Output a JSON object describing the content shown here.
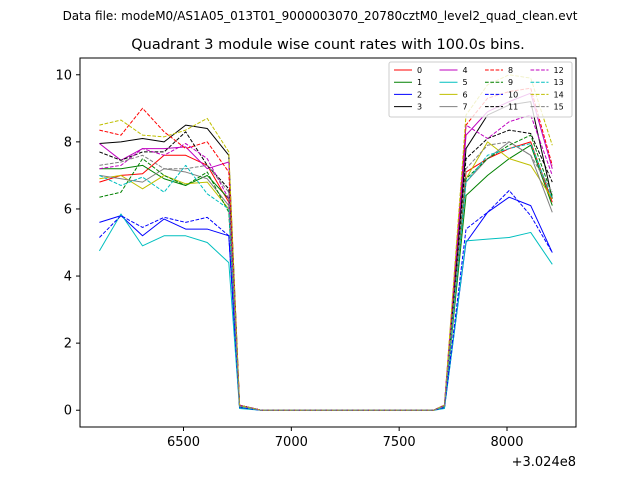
{
  "chart_data": {
    "type": "line",
    "suptitle": "Data file: modeM0/AS1A05_013T01_9000003070_20780cztM0_level2_quad_clean.evt",
    "title": "Quadrant 3 module wise count rates with 100.0s bins.",
    "xlabel": "",
    "ylabel": "",
    "x_offset_label": "+3.024e8",
    "x_offset": 302400000,
    "xlim": [
      6020,
      8320
    ],
    "ylim": [
      -0.5,
      10.5
    ],
    "x_ticks": [
      6500,
      7000,
      7500,
      8000
    ],
    "x_tick_labels": [
      "6500",
      "7000",
      "7500",
      "8000"
    ],
    "y_ticks": [
      0,
      2,
      4,
      6,
      8,
      10
    ],
    "y_tick_labels": [
      "0",
      "2",
      "4",
      "6",
      "8",
      "10"
    ],
    "legend_position": "upper right",
    "legend_columns": 4,
    "x": [
      6110,
      6210,
      6310,
      6410,
      6510,
      6610,
      6710,
      6760,
      6860,
      6960,
      7060,
      7160,
      7260,
      7360,
      7460,
      7560,
      7660,
      7710,
      7810,
      7910,
      8010,
      8110,
      8210
    ],
    "series": [
      {
        "name": "0",
        "color": "#ff0000",
        "dash": "solid",
        "values": [
          6.8,
          7.0,
          7.05,
          7.6,
          7.6,
          7.3,
          6.2,
          0.15,
          0.0,
          0.0,
          0.0,
          0.0,
          0.0,
          0.0,
          0.0,
          0.0,
          0.0,
          0.1,
          7.1,
          7.5,
          7.8,
          8.0,
          6.2
        ]
      },
      {
        "name": "1",
        "color": "#008000",
        "dash": "solid",
        "values": [
          7.2,
          7.2,
          7.3,
          6.9,
          6.7,
          7.0,
          6.3,
          0.1,
          0.0,
          0.0,
          0.0,
          0.0,
          0.0,
          0.0,
          0.0,
          0.0,
          0.0,
          0.1,
          6.4,
          7.0,
          7.5,
          7.9,
          6.1
        ]
      },
      {
        "name": "2",
        "color": "#0000ff",
        "dash": "solid",
        "values": [
          5.6,
          5.8,
          5.2,
          5.7,
          5.4,
          5.4,
          5.2,
          0.08,
          0.0,
          0.0,
          0.0,
          0.0,
          0.0,
          0.0,
          0.0,
          0.0,
          0.0,
          0.08,
          5.0,
          5.9,
          6.35,
          6.1,
          4.7
        ]
      },
      {
        "name": "3",
        "color": "#000000",
        "dash": "solid",
        "values": [
          7.95,
          8.0,
          8.1,
          8.0,
          8.5,
          8.4,
          7.6,
          0.15,
          0.0,
          0.0,
          0.0,
          0.0,
          0.0,
          0.0,
          0.0,
          0.0,
          0.0,
          0.15,
          7.8,
          8.8,
          9.1,
          9.2,
          6.3
        ]
      },
      {
        "name": "4",
        "color": "#bf00bf",
        "dash": "solid",
        "values": [
          7.95,
          7.45,
          7.8,
          7.8,
          7.85,
          7.2,
          7.4,
          0.15,
          0.0,
          0.0,
          0.0,
          0.0,
          0.0,
          0.0,
          0.0,
          0.0,
          0.0,
          0.15,
          8.2,
          8.9,
          9.2,
          9.45,
          7.2
        ]
      },
      {
        "name": "5",
        "color": "#00bfbf",
        "dash": "solid",
        "values": [
          4.75,
          5.85,
          4.9,
          5.2,
          5.2,
          5.0,
          4.4,
          0.05,
          0.0,
          0.0,
          0.0,
          0.0,
          0.0,
          0.0,
          0.0,
          0.0,
          0.0,
          0.05,
          5.05,
          5.1,
          5.15,
          5.3,
          4.35
        ]
      },
      {
        "name": "6",
        "color": "#bfbf00",
        "dash": "solid",
        "values": [
          6.9,
          7.0,
          6.6,
          7.0,
          6.75,
          6.8,
          6.0,
          0.12,
          0.0,
          0.0,
          0.0,
          0.0,
          0.0,
          0.0,
          0.0,
          0.0,
          0.0,
          0.12,
          6.9,
          8.0,
          7.5,
          7.3,
          6.3
        ]
      },
      {
        "name": "7",
        "color": "#808080",
        "dash": "solid",
        "values": [
          7.0,
          6.9,
          6.8,
          7.2,
          7.1,
          6.9,
          6.1,
          0.12,
          0.0,
          0.0,
          0.0,
          0.0,
          0.0,
          0.0,
          0.0,
          0.0,
          0.0,
          0.12,
          6.8,
          7.5,
          8.0,
          7.6,
          5.9
        ]
      },
      {
        "name": "8",
        "color": "#ff0000",
        "dash": "dashed",
        "values": [
          8.35,
          8.2,
          9.0,
          8.3,
          7.8,
          8.0,
          7.1,
          0.15,
          0.0,
          0.0,
          0.0,
          0.0,
          0.0,
          0.0,
          0.0,
          0.0,
          0.0,
          0.15,
          8.5,
          9.3,
          9.5,
          9.6,
          7.3
        ]
      },
      {
        "name": "9",
        "color": "#008000",
        "dash": "dashed",
        "values": [
          6.35,
          6.5,
          7.5,
          7.0,
          6.7,
          7.1,
          5.9,
          0.1,
          0.0,
          0.0,
          0.0,
          0.0,
          0.0,
          0.0,
          0.0,
          0.0,
          0.0,
          0.1,
          6.9,
          7.5,
          7.9,
          8.2,
          6.4
        ]
      },
      {
        "name": "10",
        "color": "#0000ff",
        "dash": "dashed",
        "values": [
          5.15,
          5.8,
          5.45,
          5.75,
          5.6,
          5.75,
          5.2,
          0.08,
          0.0,
          0.0,
          0.0,
          0.0,
          0.0,
          0.0,
          0.0,
          0.0,
          0.0,
          0.08,
          5.4,
          5.9,
          6.55,
          5.8,
          4.7
        ]
      },
      {
        "name": "11",
        "color": "#000000",
        "dash": "dashed",
        "values": [
          7.7,
          7.45,
          7.7,
          7.7,
          8.3,
          7.3,
          6.6,
          0.15,
          0.0,
          0.0,
          0.0,
          0.0,
          0.0,
          0.0,
          0.0,
          0.0,
          0.0,
          0.15,
          7.5,
          8.1,
          8.35,
          8.25,
          6.8
        ]
      },
      {
        "name": "12",
        "color": "#bf00bf",
        "dash": "dashed",
        "values": [
          7.2,
          7.3,
          7.8,
          7.6,
          7.95,
          7.5,
          6.3,
          0.15,
          0.0,
          0.0,
          0.0,
          0.0,
          0.0,
          0.0,
          0.0,
          0.0,
          0.0,
          0.15,
          8.5,
          8.1,
          8.6,
          8.8,
          7.0
        ]
      },
      {
        "name": "13",
        "color": "#00bfbf",
        "dash": "dashed",
        "values": [
          7.0,
          6.7,
          6.95,
          6.5,
          7.3,
          6.45,
          6.0,
          0.1,
          0.0,
          0.0,
          0.0,
          0.0,
          0.0,
          0.0,
          0.0,
          0.0,
          0.0,
          0.1,
          6.8,
          7.6,
          7.8,
          7.95,
          6.3
        ]
      },
      {
        "name": "14",
        "color": "#bfbf00",
        "dash": "dashed",
        "values": [
          8.5,
          8.65,
          8.2,
          8.15,
          8.35,
          8.7,
          7.7,
          0.15,
          0.0,
          0.0,
          0.0,
          0.0,
          0.0,
          0.0,
          0.0,
          0.0,
          0.0,
          0.15,
          8.8,
          9.7,
          10.0,
          9.9,
          7.9
        ]
      },
      {
        "name": "15",
        "color": "#808080",
        "dash": "dashed",
        "values": [
          7.3,
          7.4,
          7.6,
          7.2,
          7.2,
          7.3,
          6.5,
          0.12,
          0.0,
          0.0,
          0.0,
          0.0,
          0.0,
          0.0,
          0.0,
          0.0,
          0.0,
          0.12,
          7.2,
          7.9,
          8.0,
          7.6,
          6.5
        ]
      }
    ]
  }
}
